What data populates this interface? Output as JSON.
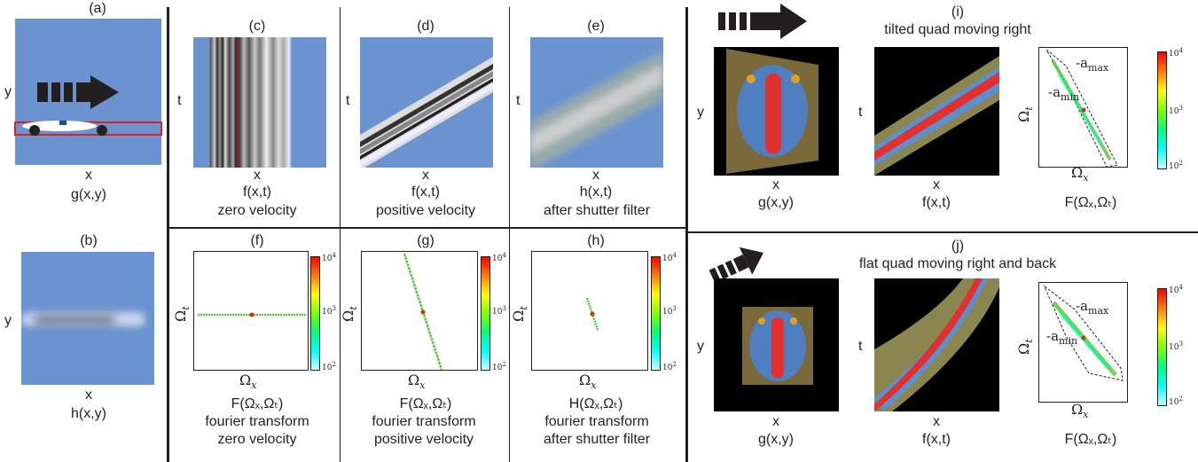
{
  "panels": {
    "a": {
      "tag": "(a)",
      "xlabel": "x",
      "ylabel": "y",
      "caption": "g(x,y)"
    },
    "b": {
      "tag": "(b)",
      "xlabel": "x",
      "ylabel": "y",
      "caption": "h(x,y)"
    },
    "c": {
      "tag": "(c)",
      "xlabel": "x",
      "ylabel": "t",
      "caption1": "f(x,t)",
      "caption2": "zero velocity"
    },
    "d": {
      "tag": "(d)",
      "xlabel": "x",
      "ylabel": "t",
      "caption1": "f(x,t)",
      "caption2": "positive velocity"
    },
    "e": {
      "tag": "(e)",
      "xlabel": "x",
      "ylabel": "t",
      "caption1": "h(x,t)",
      "caption2": "after shutter filter"
    },
    "f": {
      "tag": "(f)",
      "caption1": "F(Ωₓ,Ωₜ)",
      "caption2": "fourier transform",
      "caption3": "zero velocity"
    },
    "g": {
      "tag": "(g)",
      "caption1": "F(Ωₓ,Ωₜ)",
      "caption2": "fourier transform",
      "caption3": "positive velocity"
    },
    "h": {
      "tag": "(h)",
      "caption1": "H(Ωₓ,Ωₜ)",
      "caption2": "fourier transform",
      "caption3": "after shutter filter"
    },
    "i": {
      "tag": "(i)",
      "title": "tilted quad moving right",
      "cap1": "g(x,y)",
      "cap2": "f(x,t)",
      "cap3": "F(Ωₓ,Ωₜ)",
      "amax": "-a",
      "amax_sub": "max",
      "amin": "-a",
      "amin_sub": "min"
    },
    "j": {
      "tag": "(j)",
      "title": "flat quad moving right and back",
      "cap1": "g(x,y)",
      "cap2": "f(x,t)",
      "cap3": "F(Ωₓ,Ωₜ)",
      "amax": "-a",
      "amax_sub": "max",
      "amin": "-a",
      "amin_sub": "min"
    }
  },
  "axes": {
    "omega_x": "Ω",
    "omega_x_sub": "x",
    "omega_t": "Ω",
    "omega_t_sub": "t",
    "x": "x",
    "y": "y",
    "t": "t"
  },
  "colorbar": {
    "ticks": [
      "10",
      "10",
      "10"
    ],
    "exps": [
      "4",
      "3",
      "2"
    ],
    "colors": [
      "#ff0000",
      "#ff8000",
      "#ffff00",
      "#80ff00",
      "#00ff80",
      "#00ffff",
      "#ccffff"
    ]
  },
  "colors": {
    "background_blue": "#6a93d0",
    "dark": "#231f20",
    "green": "#57c43c",
    "black_bg": "#000000"
  }
}
